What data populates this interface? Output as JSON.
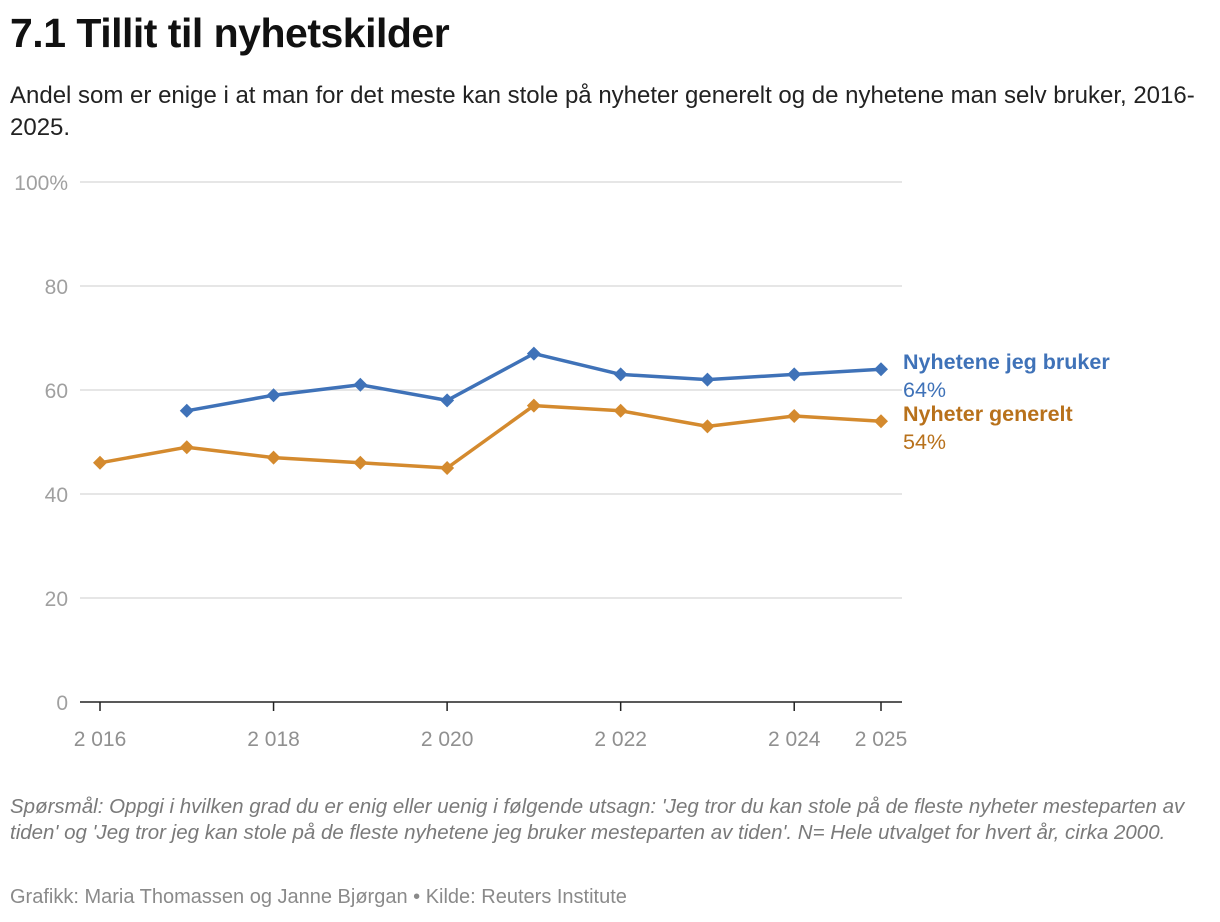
{
  "title": "7.1 Tillit til nyhetskilder",
  "subtitle": "Andel som er enige i at man for det meste kan stole på nyheter generelt og de nyhetene man selv bruker, 2016-2025.",
  "note": "Spørsmål: Oppgi i hvilken grad du er enig eller uenig i følgende utsagn: 'Jeg tror du kan stole på de fleste nyheter mesteparten av tiden' og 'Jeg tror jeg kan stole på de fleste nyhetene jeg bruker mesteparten av tiden'. N= Hele utvalget for hvert år, cirka 2000.",
  "credits": "Grafikk: Maria Thomassen og Janne Bjørgan • Kilde: Reuters Institute",
  "chart_data": {
    "type": "line",
    "title": "7.1 Tillit til nyhetskilder",
    "subtitle": "Andel som er enige i at man for det meste kan stole på nyheter generelt og de nyhetene man selv bruker, 2016-2025.",
    "xlabel": "",
    "ylabel": "",
    "x": [
      2016,
      2017,
      2018,
      2019,
      2020,
      2021,
      2022,
      2023,
      2024,
      2025
    ],
    "xlim": [
      2016,
      2025
    ],
    "ylim": [
      0,
      100
    ],
    "x_ticks": [
      2016,
      2018,
      2020,
      2022,
      2024,
      2025
    ],
    "x_tick_labels": [
      "2 016",
      "2 018",
      "2 020",
      "2 022",
      "2 024",
      "2 025"
    ],
    "y_ticks": [
      0,
      20,
      40,
      60,
      80,
      100
    ],
    "y_tick_labels": [
      "0",
      "20",
      "40",
      "60",
      "80",
      "100%"
    ],
    "grid": true,
    "legend": "end-of-line labels",
    "series": [
      {
        "name": "Nyhetene jeg bruker",
        "color": "#3f72b8",
        "end_label": "64%",
        "values": [
          null,
          56,
          59,
          61,
          58,
          67,
          63,
          62,
          63,
          64
        ]
      },
      {
        "name": "Nyheter generelt",
        "color": "#d48a2e",
        "label_color": "#b8711b",
        "end_label": "54%",
        "values": [
          46,
          49,
          47,
          46,
          45,
          57,
          56,
          53,
          55,
          54
        ]
      }
    ]
  }
}
